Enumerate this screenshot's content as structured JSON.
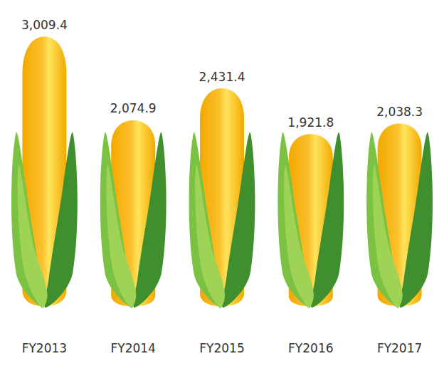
{
  "chart_data": {
    "type": "bar",
    "categories": [
      "FY2013",
      "FY2014",
      "FY2015",
      "FY2016",
      "FY2017"
    ],
    "values": [
      3009.4,
      2074.9,
      2431.4,
      1921.8,
      2038.3
    ],
    "value_labels": [
      "3,009.4",
      "2,074.9",
      "2,431.4",
      "1,921.8",
      "2,038.3"
    ],
    "color": "#fbc02d",
    "ylim": [
      0,
      3100
    ],
    "data_labels": true,
    "tick_labels": "x",
    "grid": false
  }
}
